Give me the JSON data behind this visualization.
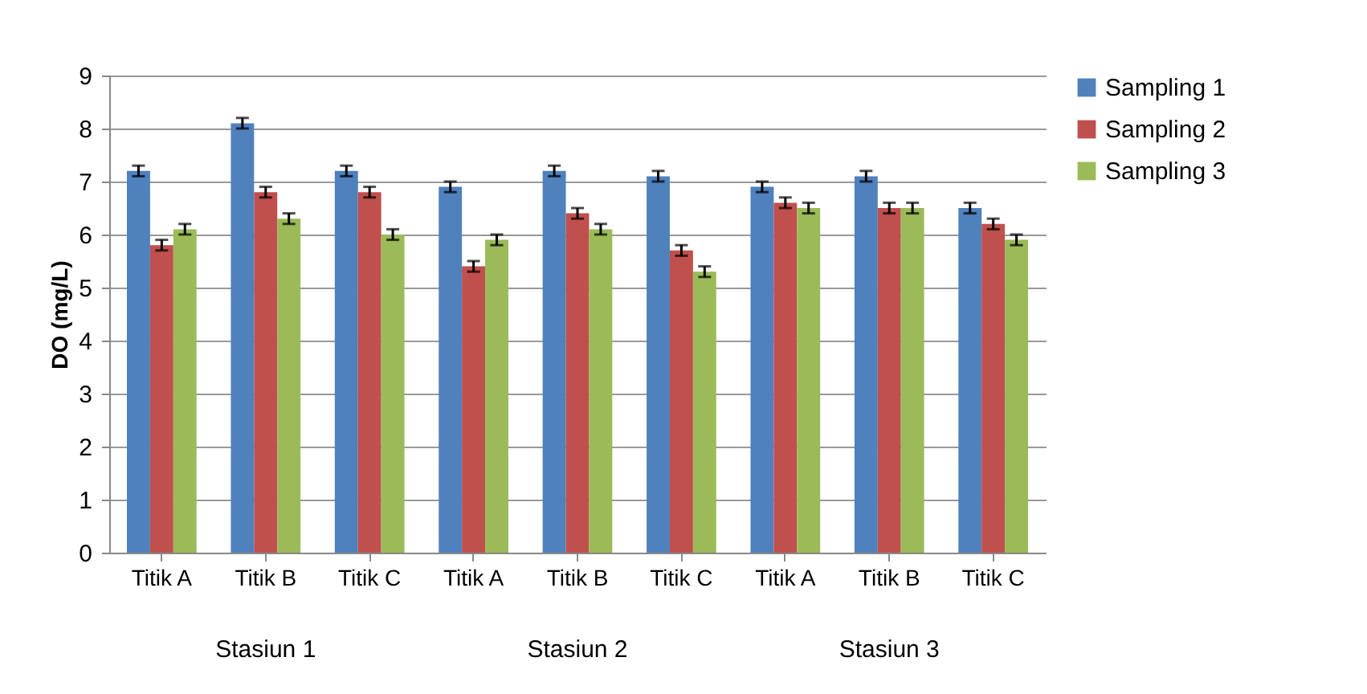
{
  "chart_data": {
    "type": "bar",
    "ylabel": "DO (mg/L)",
    "categories": [
      "Titik A",
      "Titik B",
      "Titik C",
      "Titik A",
      "Titik B",
      "Titik C",
      "Titik A",
      "Titik B",
      "Titik C"
    ],
    "series": [
      {
        "name": "Sampling 1",
        "color": "#4f81bd",
        "values": [
          7.2,
          8.1,
          7.2,
          6.9,
          7.2,
          7.1,
          6.9,
          7.1,
          6.5
        ],
        "errors": [
          0.1,
          0.1,
          0.1,
          0.1,
          0.1,
          0.1,
          0.1,
          0.1,
          0.1
        ]
      },
      {
        "name": "Sampling 2",
        "color": "#c0504d",
        "values": [
          5.8,
          6.8,
          6.8,
          5.4,
          6.4,
          5.7,
          6.6,
          6.5,
          6.2
        ],
        "errors": [
          0.1,
          0.1,
          0.1,
          0.1,
          0.1,
          0.1,
          0.1,
          0.1,
          0.1
        ]
      },
      {
        "name": "Sampling 3",
        "color": "#9bbb59",
        "values": [
          6.1,
          6.3,
          6.0,
          5.9,
          6.1,
          5.3,
          6.5,
          6.5,
          5.9
        ],
        "errors": [
          0.1,
          0.1,
          0.1,
          0.1,
          0.1,
          0.1,
          0.1,
          0.1,
          0.1
        ]
      }
    ],
    "annotations": [
      "Stasiun 1",
      "Stasiun 2",
      "Stasiun 3"
    ],
    "ylim": [
      0,
      9
    ],
    "yticks": [
      0,
      1,
      2,
      3,
      4,
      5,
      6,
      7,
      8,
      9
    ],
    "grid": "y",
    "legend": "right"
  }
}
